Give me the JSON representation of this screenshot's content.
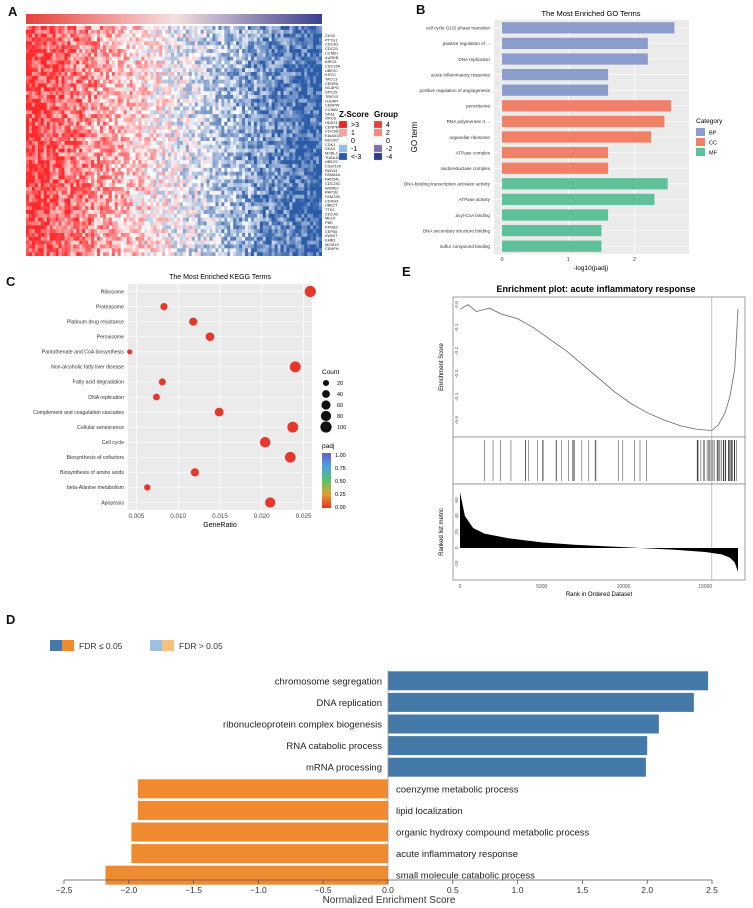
{
  "panel_labels": {
    "a": "A",
    "b": "B",
    "c": "C",
    "d": "D",
    "e": "E"
  },
  "chart_data": [
    {
      "panel": "A",
      "type": "heatmap",
      "genes": [
        "CKS2",
        "PTTG1",
        "CDCA3",
        "CDC20",
        "CCNB1",
        "AURKB",
        "BIRC5",
        "CDC25A",
        "UBE2C",
        "KIF2C",
        "TACC3",
        "CENPA",
        "NCAPG",
        "SPC25",
        "TRIP13",
        "HJURP",
        "CENPW",
        "CCNB2",
        "SKA1",
        "ORC6",
        "HDAT4",
        "CENPM",
        "CDCA8",
        "KIAA0101",
        "NDC80",
        "CDK1",
        "SKA3",
        "MYBL2",
        "TUBA1B",
        "UBE2S",
        "C9orf100",
        "RAD51",
        "FAM64A",
        "RAD54L",
        "CDC25C",
        "WDR62",
        "RAP1B",
        "FAM72B",
        "CDKN3",
        "UBE2T",
        "TTK2",
        "CDCA2",
        "MELK",
        "PBK",
        "KPNA2",
        "CEP55",
        "ZWINT",
        "EMB1",
        "MCM10",
        "CENPH"
      ],
      "legend": {
        "zscore_title": "Z-Score",
        "zscore_labels": [
          ">3",
          "1",
          "0",
          "-1",
          "<-3"
        ],
        "zscore_colors": [
          "#e8292b",
          "#f4a3a3",
          "#ffffff",
          "#8fc0e6",
          "#2a5ca8"
        ],
        "group_title": "Group",
        "group_labels": [
          "4",
          "2",
          "0",
          "-2",
          "-4"
        ],
        "group_colors": [
          "#e5413a",
          "#ef8a7a",
          "#ffffff",
          "#7c6fae",
          "#2b3a8c"
        ]
      }
    },
    {
      "panel": "B",
      "type": "bar",
      "title": "The Most Enriched GO Terms",
      "xlabel": "-log10(padj)",
      "ylabel": "GO term",
      "xlim": [
        0,
        2.7
      ],
      "xticks": [
        "0",
        "1",
        "2"
      ],
      "legend_title": "Category",
      "categories_legend": [
        {
          "name": "BP",
          "color": "#8c9ccb"
        },
        {
          "name": "CC",
          "color": "#f08066"
        },
        {
          "name": "MF",
          "color": "#5fc09c"
        }
      ],
      "bars": [
        {
          "term": "cell cycle G1/S phase transition",
          "value": 2.6,
          "category": "BP"
        },
        {
          "term": "positive regulation of ...",
          "value": 2.2,
          "category": "BP"
        },
        {
          "term": "DNA replication",
          "value": 2.2,
          "category": "BP"
        },
        {
          "term": "acute inflammatory response",
          "value": 1.6,
          "category": "BP"
        },
        {
          "term": "positive regulation of angiogenesis",
          "value": 1.6,
          "category": "BP"
        },
        {
          "term": "peroxisome",
          "value": 2.55,
          "category": "CC"
        },
        {
          "term": "RNA polymerase II ...",
          "value": 2.45,
          "category": "CC"
        },
        {
          "term": "organellar ribosome",
          "value": 2.25,
          "category": "CC"
        },
        {
          "term": "ATPase complex",
          "value": 1.6,
          "category": "CC"
        },
        {
          "term": "oxidoreductase complex",
          "value": 1.6,
          "category": "CC"
        },
        {
          "term": "DNA-binding transcription activator activity",
          "value": 2.5,
          "category": "MF"
        },
        {
          "term": "ATPase activity",
          "value": 2.3,
          "category": "MF"
        },
        {
          "term": "acyl-CoA binding",
          "value": 1.6,
          "category": "MF"
        },
        {
          "term": "DNA secondary structure binding",
          "value": 1.5,
          "category": "MF"
        },
        {
          "term": "sulfur compound binding",
          "value": 1.5,
          "category": "MF"
        }
      ]
    },
    {
      "panel": "C",
      "type": "scatter",
      "title": "The Most Enriched KEGG Terms",
      "xlabel": "GeneRatio",
      "xlim": [
        0.004,
        0.026
      ],
      "xticks": [
        0.005,
        0.01,
        0.015,
        0.02,
        0.025
      ],
      "xtick_labels": [
        "0.005",
        "0.010",
        "0.015",
        "0.020",
        "0.025"
      ],
      "size_legend_title": "Count",
      "size_legend": [
        20,
        40,
        60,
        80,
        100
      ],
      "color_legend_title": "padj",
      "color_legend_labels": [
        "1.00",
        "0.75",
        "0.50",
        "0.25",
        "0.00"
      ],
      "points": [
        {
          "term": "Ribosome",
          "x": 0.0258,
          "count": 100
        },
        {
          "term": "Proteasome",
          "x": 0.0083,
          "count": 32
        },
        {
          "term": "Platinum drug resistance",
          "x": 0.0118,
          "count": 45
        },
        {
          "term": "Peroxisome",
          "x": 0.0138,
          "count": 52
        },
        {
          "term": "Pantothenate and CoA biosynthesis",
          "x": 0.0042,
          "count": 12
        },
        {
          "term": "Non-alcoholic fatty liver disease",
          "x": 0.024,
          "count": 95
        },
        {
          "term": "Fatty acid degradation",
          "x": 0.0081,
          "count": 30
        },
        {
          "term": "DNA replication",
          "x": 0.0074,
          "count": 28
        },
        {
          "term": "Complement and coagulation cascades",
          "x": 0.0149,
          "count": 55
        },
        {
          "term": "Cellular senescence",
          "x": 0.0237,
          "count": 92
        },
        {
          "term": "Cell cycle",
          "x": 0.0204,
          "count": 85
        },
        {
          "term": "Biosynthesis of cofactors",
          "x": 0.0234,
          "count": 90
        },
        {
          "term": "Biosynthesis of amino acids",
          "x": 0.012,
          "count": 45
        },
        {
          "term": "beta-Alanine metabolism",
          "x": 0.0063,
          "count": 22
        },
        {
          "term": "Apoptosis",
          "x": 0.021,
          "count": 80
        }
      ]
    },
    {
      "panel": "D",
      "type": "bar",
      "xlabel": "Normalized Enrichment Score",
      "xlim": [
        -2.5,
        2.5
      ],
      "xticks": [
        -2.5,
        -2.0,
        -1.5,
        -1.0,
        -0.5,
        0.0,
        0.5,
        1.0,
        1.5,
        2.0,
        2.5
      ],
      "xtick_labels": [
        "−2.5",
        "−2.0",
        "−1.5",
        "−1.0",
        "−0.5",
        "0.0",
        "0.5",
        "1.0",
        "1.5",
        "2.0",
        "2.5"
      ],
      "legend": [
        {
          "label": "FDR ≤ 0.05",
          "colors": [
            "#4479a8",
            "#f08a30"
          ]
        },
        {
          "label": "FDR > 0.05",
          "colors": [
            "#9dbfe0",
            "#f6c07e"
          ]
        }
      ],
      "bars": [
        {
          "term": "chromosome segregation",
          "value": 2.47
        },
        {
          "term": "DNA replication",
          "value": 2.36
        },
        {
          "term": "ribonucleoprotein complex biogenesis",
          "value": 2.09
        },
        {
          "term": "RNA catabolic process",
          "value": 2.0
        },
        {
          "term": "mRNA processing",
          "value": 1.99
        },
        {
          "term": "coenzyme metabolic process",
          "value": -1.93
        },
        {
          "term": "lipid localization",
          "value": -1.93
        },
        {
          "term": "organic hydroxy compound metabolic process",
          "value": -1.98
        },
        {
          "term": "acute inflammatory response",
          "value": -1.98
        },
        {
          "term": "small molecule catabolic process",
          "value": -2.18
        }
      ]
    },
    {
      "panel": "E",
      "type": "line",
      "title": "Enrichment plot: acute inflammatory response",
      "es_ylabel": "Enrichment Score",
      "es_ytick_labels": [
        "0.0",
        "-0.1",
        "-0.2",
        "-0.3",
        "-0.4",
        "-0.5"
      ],
      "es_ylim": [
        -0.56,
        0.02
      ],
      "metric_ylabel": "Ranked list metric",
      "metric_ytick_labels": [
        "60",
        "40",
        "20",
        "0",
        "-20"
      ],
      "xlabel": "Rank in Ordered Dataset",
      "xtick_labels": [
        "0",
        "5000",
        "10000",
        "15000"
      ],
      "xlim": [
        0,
        17000
      ],
      "min_rank": 15400,
      "es_curve": [
        [
          0,
          -0.02
        ],
        [
          500,
          0.0
        ],
        [
          1000,
          -0.03
        ],
        [
          1800,
          -0.015
        ],
        [
          2500,
          -0.04
        ],
        [
          3500,
          -0.06
        ],
        [
          4500,
          -0.1
        ],
        [
          5500,
          -0.15
        ],
        [
          6500,
          -0.2
        ],
        [
          7500,
          -0.26
        ],
        [
          8500,
          -0.32
        ],
        [
          9500,
          -0.38
        ],
        [
          10500,
          -0.43
        ],
        [
          11500,
          -0.47
        ],
        [
          12500,
          -0.5
        ],
        [
          13500,
          -0.525
        ],
        [
          14500,
          -0.54
        ],
        [
          15400,
          -0.545
        ],
        [
          15800,
          -0.52
        ],
        [
          16200,
          -0.47
        ],
        [
          16500,
          -0.4
        ],
        [
          16800,
          -0.28
        ],
        [
          17000,
          -0.02
        ]
      ],
      "metric_curve": [
        [
          0,
          70
        ],
        [
          300,
          40
        ],
        [
          800,
          25
        ],
        [
          1500,
          18
        ],
        [
          3000,
          12
        ],
        [
          5000,
          7
        ],
        [
          7000,
          4
        ],
        [
          9000,
          2
        ],
        [
          11000,
          0
        ],
        [
          13000,
          -2
        ],
        [
          15000,
          -5
        ],
        [
          16000,
          -8
        ],
        [
          16500,
          -12
        ],
        [
          16800,
          -18
        ],
        [
          17000,
          -30
        ]
      ]
    }
  ]
}
